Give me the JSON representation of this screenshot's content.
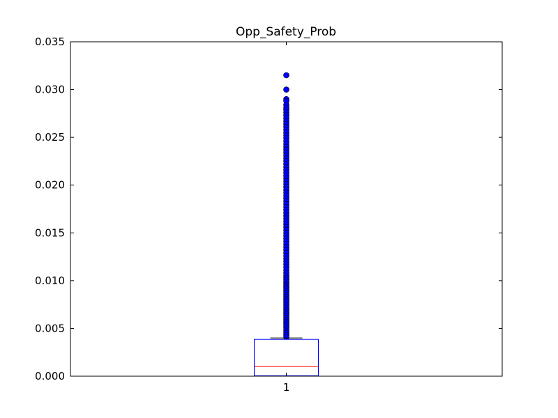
{
  "chart_data": {
    "type": "box",
    "title": "Opp_Safety_Prob",
    "xlabel": "",
    "ylabel": "",
    "categories": [
      "1"
    ],
    "ylim": [
      0,
      0.035
    ],
    "yticks": [
      0.0,
      0.005,
      0.01,
      0.015,
      0.02,
      0.025,
      0.03,
      0.035
    ],
    "ytick_labels": [
      "0.000",
      "0.005",
      "0.010",
      "0.015",
      "0.020",
      "0.025",
      "0.030",
      "0.035"
    ],
    "grid": false,
    "boxes": [
      {
        "category": "1",
        "whisker_low": 0.0,
        "q1": 5e-05,
        "median": 0.001,
        "q3": 0.00385,
        "whisker_high": 0.004,
        "outliers": [
          0.0315,
          0.03,
          0.029,
          0.0288,
          0.0284,
          0.0281,
          0.0279,
          0.0276,
          0.0273,
          0.027,
          0.0267,
          0.0264,
          0.0261,
          0.0258,
          0.0255,
          0.0252,
          0.0249,
          0.0246,
          0.0243,
          0.024,
          0.0237,
          0.0234,
          0.0231,
          0.0228,
          0.0225,
          0.0222,
          0.0219,
          0.0216,
          0.0213,
          0.021,
          0.0207,
          0.0204,
          0.0201,
          0.0198,
          0.0195,
          0.0192,
          0.0189,
          0.0186,
          0.0183,
          0.018,
          0.0177,
          0.0174,
          0.0171,
          0.0168,
          0.0165,
          0.0162,
          0.0159,
          0.0156,
          0.0153,
          0.015,
          0.0147,
          0.0144,
          0.0141,
          0.0138,
          0.0135,
          0.0132,
          0.0129,
          0.0126,
          0.0123,
          0.012,
          0.0117,
          0.0114,
          0.0111,
          0.0108,
          0.0105,
          0.0103,
          0.0101,
          0.0099,
          0.0097,
          0.0095,
          0.0093,
          0.0091,
          0.0089,
          0.0087,
          0.0085,
          0.0083,
          0.0081,
          0.0079,
          0.0077,
          0.0075,
          0.0073,
          0.0071,
          0.0069,
          0.0067,
          0.0065,
          0.0063,
          0.0061,
          0.0059,
          0.0057,
          0.0055,
          0.0053,
          0.0051,
          0.0049,
          0.0047,
          0.0045,
          0.0043,
          0.0041
        ]
      }
    ],
    "colors": {
      "box": "#0000ff",
      "median": "#ff0000",
      "whisker": "#000000",
      "outlier_fill": "#0000ff",
      "axes": "#000000"
    }
  }
}
